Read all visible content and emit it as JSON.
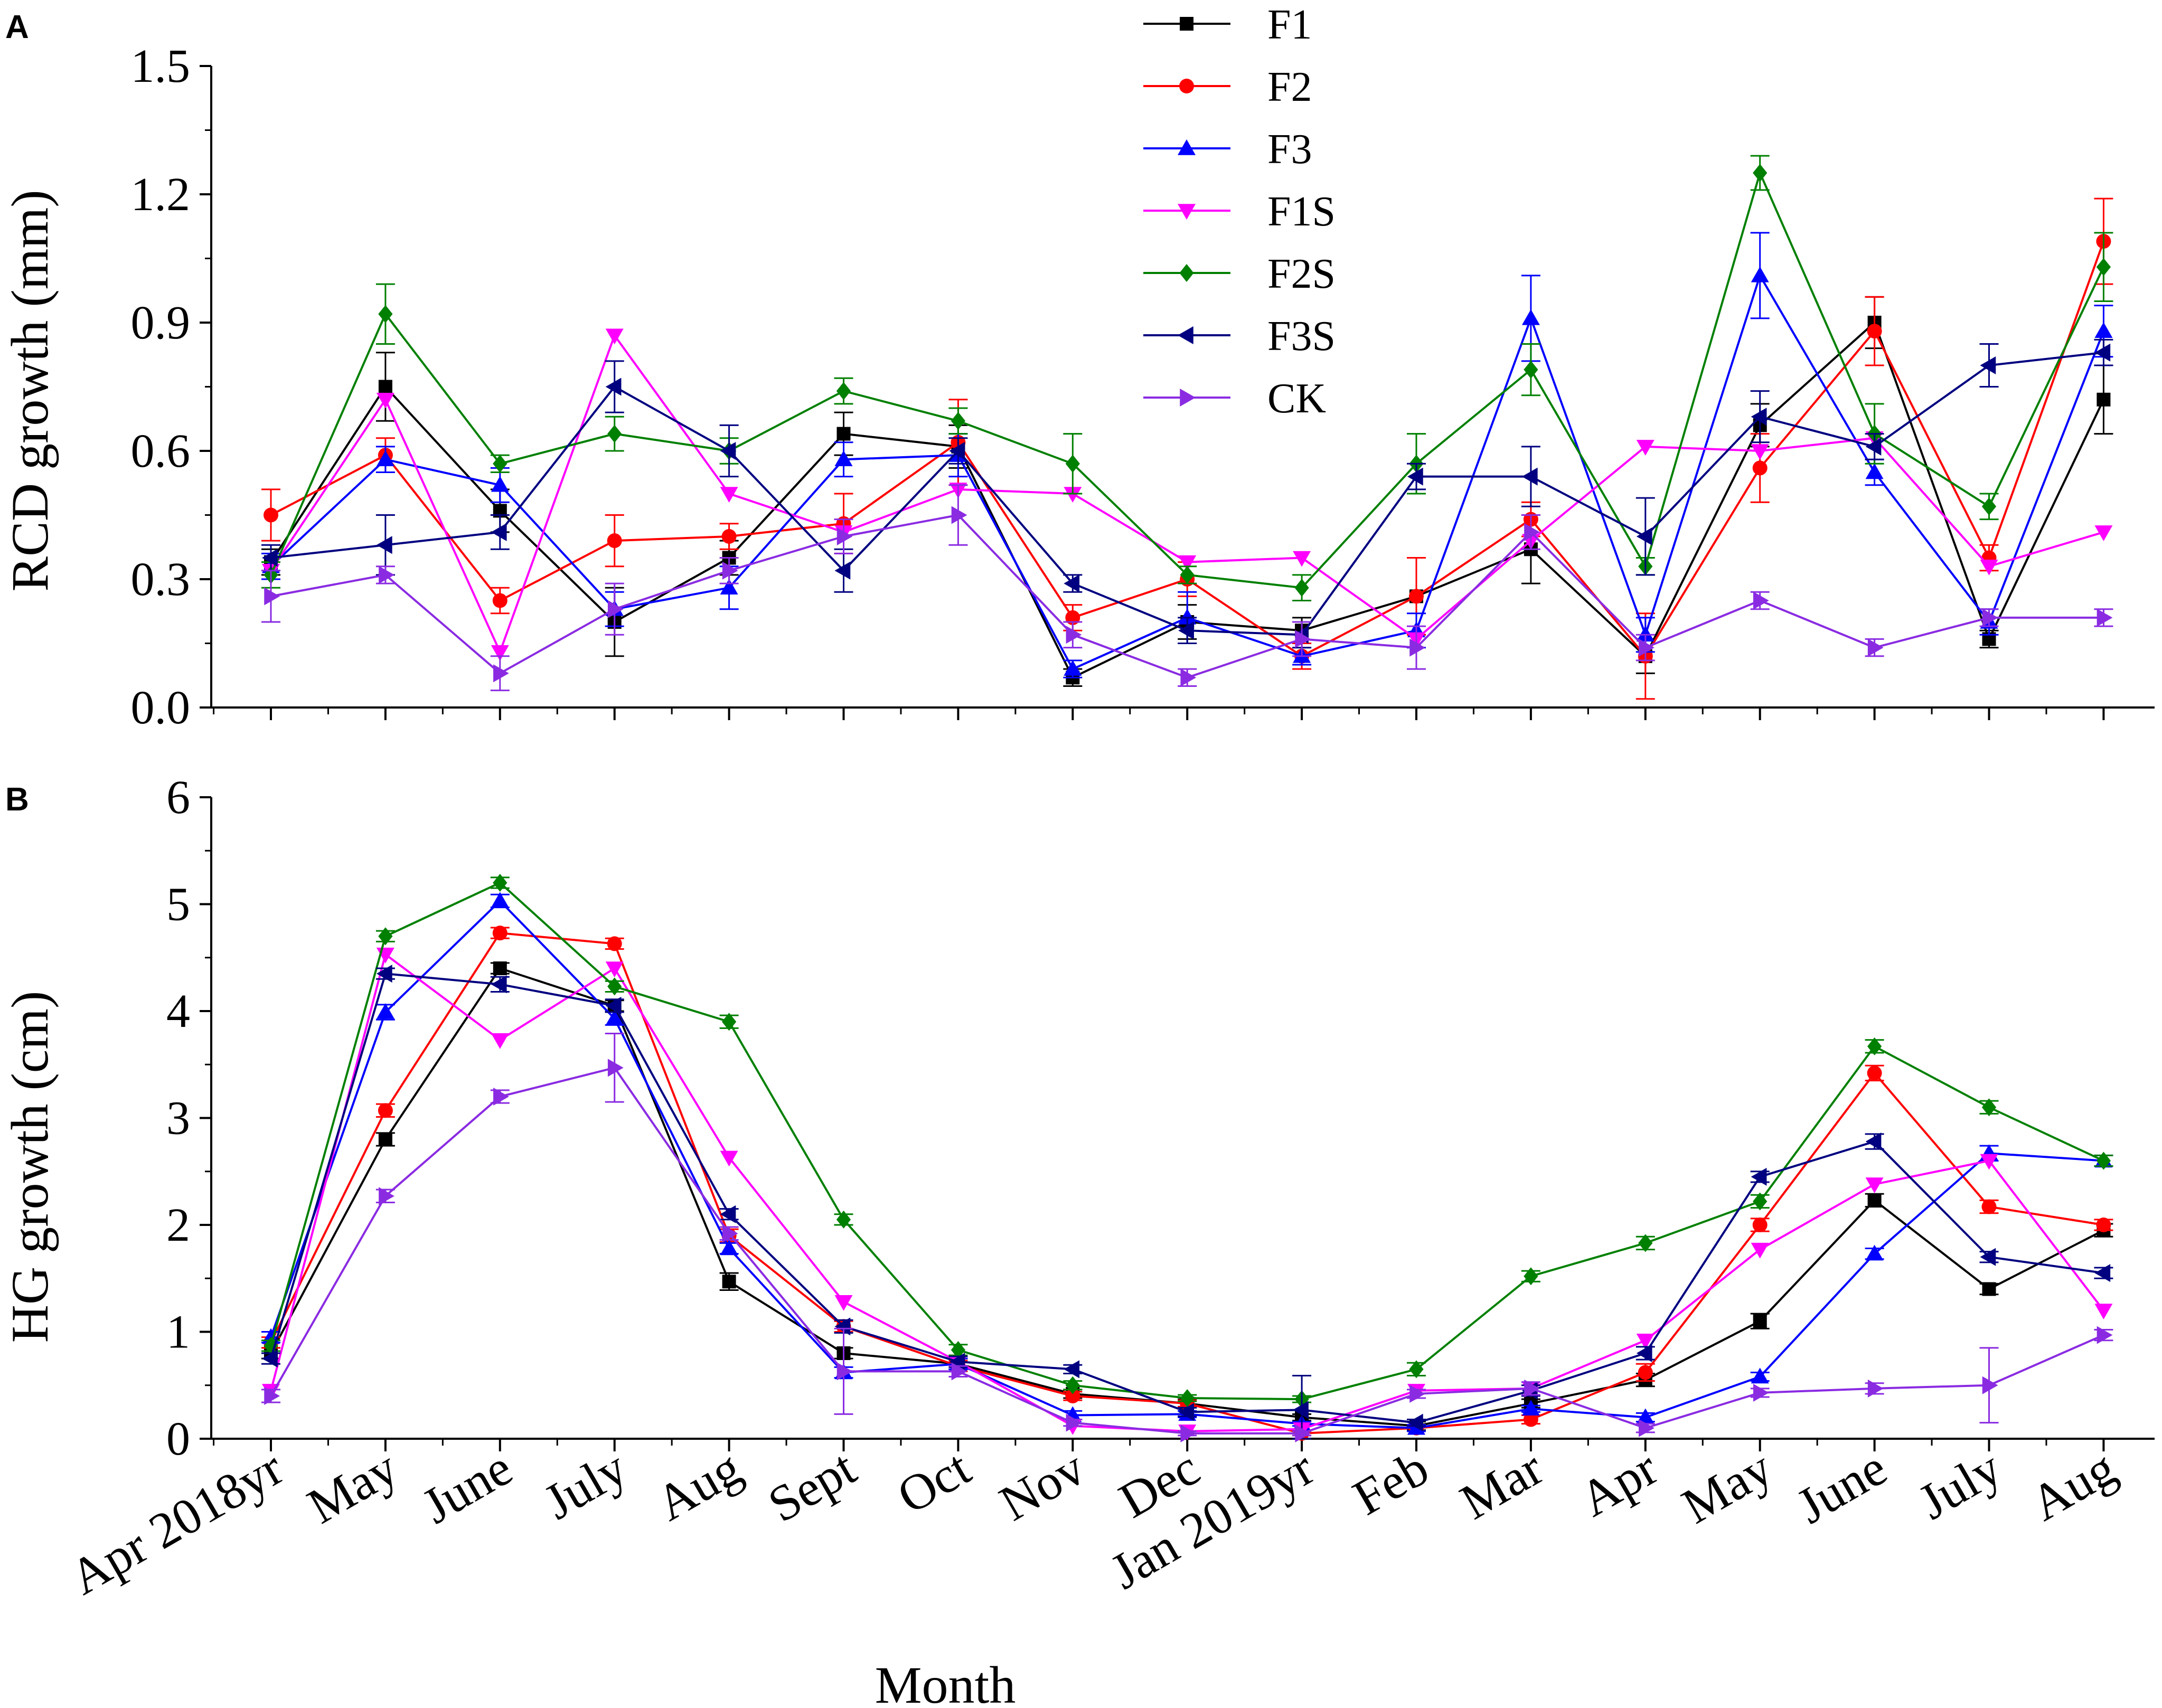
{
  "chart_data": {
    "type": "line",
    "xlabel": "Month",
    "categories": [
      "Apr 2018yr",
      "May",
      "June",
      "July",
      "Aug",
      "Sept",
      "Oct",
      "Nov",
      "Dec",
      "Jan 2019yr",
      "Feb",
      "Mar",
      "Apr",
      "May",
      "June",
      "July",
      "Aug"
    ],
    "legend": {
      "placement": "top-center",
      "entries": [
        {
          "name": "F1",
          "color": "#000000",
          "marker": "square"
        },
        {
          "name": "F2",
          "color": "#ff0000",
          "marker": "circle"
        },
        {
          "name": "F3",
          "color": "#0000ff",
          "marker": "triangle-up"
        },
        {
          "name": "F1S",
          "color": "#ff00ff",
          "marker": "triangle-down"
        },
        {
          "name": "F2S",
          "color": "#008000",
          "marker": "diamond"
        },
        {
          "name": "F3S",
          "color": "#000080",
          "marker": "triangle-left"
        },
        {
          "name": "CK",
          "color": "#8a2be2",
          "marker": "triangle-right"
        }
      ]
    },
    "panels": [
      {
        "label": "A",
        "ylabel": "RCD growth (mm)",
        "ylim": [
          0,
          1.5
        ],
        "yticks": [
          "0.0",
          "0.3",
          "0.6",
          "0.9",
          "1.2",
          "1.5"
        ],
        "ytick_values": [
          0,
          0.3,
          0.6,
          0.9,
          1.2,
          1.5
        ],
        "series": [
          {
            "name": "F1",
            "values": [
              0.34,
              0.75,
              0.46,
              0.2,
              0.35,
              0.64,
              0.61,
              0.07,
              0.2,
              0.18,
              0.26,
              0.37,
              0.12,
              0.66,
              0.9,
              0.16,
              0.72
            ],
            "errors": [
              0.03,
              0.08,
              0.05,
              0.08,
              0.04,
              0.05,
              0.05,
              0.02,
              0.04,
              0.03,
              0.09,
              0.08,
              0.04,
              0.05,
              0.06,
              0.02,
              0.08
            ]
          },
          {
            "name": "F2",
            "values": [
              0.45,
              0.59,
              0.25,
              0.39,
              0.4,
              0.43,
              0.62,
              0.21,
              0.3,
              0.12,
              0.26,
              0.44,
              0.12,
              0.56,
              0.88,
              0.35,
              1.09
            ],
            "errors": [
              0.06,
              0.04,
              0.03,
              0.06,
              0.03,
              0.07,
              0.1,
              0.03,
              0.04,
              0.03,
              0.09,
              0.04,
              0.1,
              0.08,
              0.08,
              0.03,
              0.1
            ]
          },
          {
            "name": "F3",
            "values": [
              0.33,
              0.58,
              0.52,
              0.23,
              0.28,
              0.58,
              0.59,
              0.09,
              0.21,
              0.12,
              0.18,
              0.91,
              0.17,
              1.01,
              0.55,
              0.2,
              0.88
            ],
            "errors": [
              0.03,
              0.03,
              0.04,
              0.04,
              0.05,
              0.04,
              0.05,
              0.02,
              0.06,
              0.02,
              0.04,
              0.1,
              0.04,
              0.1,
              0.03,
              0.03,
              0.06
            ]
          },
          {
            "name": "F1S",
            "values": [
              0.32,
              0.72,
              0.13,
              0.87,
              0.5,
              0.41,
              0.51,
              0.5,
              0.34,
              0.35,
              0.16,
              0.39,
              0.61,
              0.6,
              0.63,
              0.33,
              0.41
            ]
          },
          {
            "name": "F2S",
            "values": [
              0.31,
              0.92,
              0.57,
              0.64,
              0.6,
              0.74,
              0.67,
              0.57,
              0.31,
              0.28,
              0.57,
              0.79,
              0.33,
              1.25,
              0.64,
              0.47,
              1.03
            ],
            "errors": [
              0.03,
              0.07,
              0.02,
              0.04,
              0.03,
              0.03,
              0.03,
              0.07,
              0.02,
              0.03,
              0.07,
              0.06,
              0.02,
              0.04,
              0.07,
              0.03,
              0.08
            ]
          },
          {
            "name": "F3S",
            "values": [
              0.35,
              0.38,
              0.41,
              0.75,
              0.6,
              0.32,
              0.6,
              0.29,
              0.18,
              0.17,
              0.54,
              0.54,
              0.4,
              0.68,
              0.61,
              0.8,
              0.83
            ],
            "errors": [
              0.03,
              0.07,
              0.04,
              0.06,
              0.06,
              0.05,
              0.03,
              0.02,
              0.03,
              0.03,
              0.03,
              0.07,
              0.09,
              0.06,
              0.03,
              0.05,
              0.03
            ]
          },
          {
            "name": "CK",
            "values": [
              0.26,
              0.31,
              0.08,
              0.23,
              0.32,
              0.4,
              0.45,
              0.17,
              0.07,
              0.16,
              0.14,
              0.41,
              0.14,
              0.25,
              0.14,
              0.21,
              0.21
            ],
            "errors": [
              0.06,
              0.02,
              0.04,
              0.06,
              0.03,
              0.04,
              0.07,
              0.03,
              0.02,
              0.04,
              0.05,
              0.04,
              0.03,
              0.02,
              0.02,
              0.02,
              0.02
            ]
          }
        ]
      },
      {
        "label": "B",
        "ylabel": "HG growth (cm)",
        "ylim": [
          0,
          6
        ],
        "yticks": [
          "0",
          "1",
          "2",
          "3",
          "4",
          "5",
          "6"
        ],
        "ytick_values": [
          0,
          1,
          2,
          3,
          4,
          5,
          6
        ],
        "series": [
          {
            "name": "F1",
            "values": [
              0.8,
              2.8,
              4.4,
              4.05,
              1.47,
              0.8,
              0.7,
              0.42,
              0.33,
              0.2,
              0.12,
              0.33,
              0.55,
              1.1,
              2.23,
              1.4,
              1.95
            ],
            "errors": [
              0.05,
              0.06,
              0.05,
              0.05,
              0.08,
              0.05,
              0.05,
              0.04,
              0.04,
              0.03,
              0.04,
              0.04,
              0.06,
              0.07,
              0.06,
              0.05,
              0.06
            ]
          },
          {
            "name": "F2",
            "values": [
              0.9,
              3.07,
              4.73,
              4.63,
              1.9,
              1.05,
              0.68,
              0.4,
              0.33,
              0.05,
              0.1,
              0.18,
              0.62,
              2.0,
              3.42,
              2.17,
              2.0
            ],
            "errors": [
              0.05,
              0.06,
              0.05,
              0.05,
              0.06,
              0.05,
              0.05,
              0.04,
              0.03,
              0.02,
              0.03,
              0.04,
              0.08,
              0.06,
              0.07,
              0.06,
              0.05
            ]
          },
          {
            "name": "F3",
            "values": [
              0.95,
              3.99,
              5.03,
              3.93,
              1.78,
              0.62,
              0.7,
              0.22,
              0.23,
              0.14,
              0.1,
              0.28,
              0.2,
              0.58,
              1.73,
              2.67,
              2.6
            ],
            "errors": [
              0.05,
              0.07,
              0.06,
              0.06,
              0.05,
              0.05,
              0.05,
              0.04,
              0.03,
              0.02,
              0.03,
              0.03,
              0.04,
              0.04,
              0.05,
              0.07,
              0.05
            ]
          },
          {
            "name": "F1S",
            "values": [
              0.45,
              4.53,
              3.73,
              4.4,
              2.63,
              1.28,
              0.72,
              0.12,
              0.07,
              0.09,
              0.45,
              0.47,
              0.92,
              1.77,
              2.38,
              2.6,
              1.2
            ]
          },
          {
            "name": "F2S",
            "values": [
              0.87,
              4.7,
              5.2,
              4.23,
              3.9,
              2.05,
              0.83,
              0.5,
              0.38,
              0.37,
              0.65,
              1.52,
              1.83,
              2.22,
              3.67,
              3.1,
              2.6
            ],
            "errors": [
              0.05,
              0.05,
              0.05,
              0.05,
              0.06,
              0.05,
              0.05,
              0.04,
              0.03,
              0.03,
              0.06,
              0.05,
              0.06,
              0.06,
              0.06,
              0.06,
              0.05
            ]
          },
          {
            "name": "F3S",
            "values": [
              0.75,
              4.35,
              4.25,
              4.05,
              2.1,
              1.05,
              0.72,
              0.65,
              0.25,
              0.27,
              0.15,
              0.45,
              0.8,
              2.45,
              2.78,
              1.7,
              1.55
            ],
            "errors": [
              0.05,
              0.05,
              0.07,
              0.06,
              0.05,
              0.06,
              0.05,
              0.04,
              0.04,
              0.32,
              0.03,
              0.05,
              0.06,
              0.05,
              0.07,
              0.05,
              0.05
            ]
          },
          {
            "name": "CK",
            "values": [
              0.4,
              2.27,
              3.2,
              3.47,
              1.92,
              0.63,
              0.63,
              0.15,
              0.05,
              0.05,
              0.42,
              0.47,
              0.1,
              0.43,
              0.47,
              0.5,
              0.97
            ],
            "errors": [
              0.06,
              0.06,
              0.06,
              0.32,
              0.06,
              0.4,
              0.05,
              0.03,
              0.02,
              0.02,
              0.04,
              0.06,
              0.04,
              0.04,
              0.05,
              0.35,
              0.05
            ]
          }
        ]
      }
    ]
  }
}
